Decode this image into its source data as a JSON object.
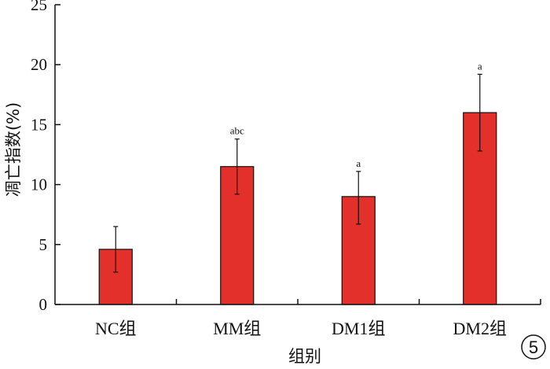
{
  "chart_data": {
    "type": "bar",
    "categories": [
      "NC组",
      "MM组",
      "DM1组",
      "DM2组"
    ],
    "values": [
      4.6,
      11.5,
      9.0,
      16.0
    ],
    "error_upper": [
      6.5,
      13.8,
      11.1,
      19.2
    ],
    "error_lower": [
      2.7,
      9.2,
      6.7,
      12.8
    ],
    "significance": [
      "",
      "abc",
      "a",
      "a"
    ],
    "xlabel": "组别",
    "ylabel": "凋亡指数(%)",
    "ylim": [
      0,
      25
    ],
    "yticks": [
      0,
      5,
      10,
      15,
      20,
      25
    ],
    "grid": false,
    "bar_color": "#e3302b"
  },
  "panel_label": "5"
}
